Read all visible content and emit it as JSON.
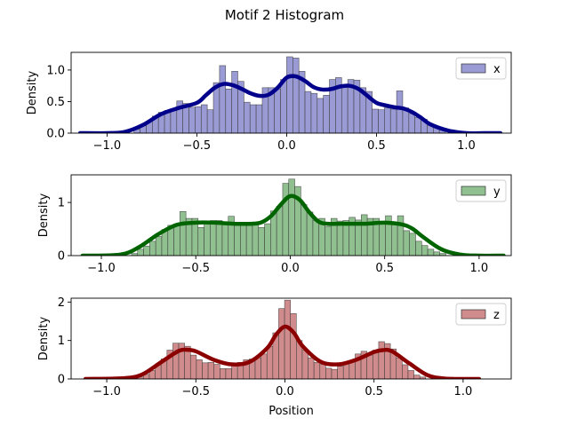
{
  "chart_data": {
    "title": "Motif 2 Histogram",
    "xlabel": "Position",
    "type": "bar",
    "panels": [
      {
        "name": "x",
        "ylabel": "Density",
        "xlim": [
          -1.2,
          1.25
        ],
        "ylim": [
          0,
          1.28
        ],
        "xticks": [
          -1.0,
          -0.5,
          0.0,
          0.5,
          1.0
        ],
        "xtick_labels": [
          "−1.0",
          "−0.5",
          "0.0",
          "0.5",
          "1.0"
        ],
        "yticks": [
          0.0,
          0.5,
          1.0
        ],
        "ytick_labels": [
          "0.0",
          "0.5",
          "1.0"
        ],
        "bar_color": "#9a9ad4",
        "line_color": "#00008b",
        "legend_position": "upper-right",
        "bins": {
          "start": -0.85,
          "width": 0.034,
          "values": [
            0.06,
            0.12,
            0.18,
            0.27,
            0.33,
            0.36,
            0.37,
            0.51,
            0.47,
            0.41,
            0.42,
            0.45,
            0.37,
            0.8,
            1.07,
            0.7,
            0.98,
            0.82,
            0.49,
            0.45,
            0.45,
            0.72,
            0.72,
            0.7,
            0.85,
            1.21,
            1.19,
            0.98,
            0.66,
            0.63,
            0.55,
            0.6,
            0.85,
            0.88,
            0.76,
            0.85,
            0.84,
            0.72,
            0.66,
            0.38,
            0.37,
            0.4,
            0.38,
            0.67,
            0.4,
            0.31,
            0.25,
            0.22,
            0.12,
            0.1,
            0.06
          ]
        },
        "kde": {
          "x": [
            -1.15,
            -1.0,
            -0.9,
            -0.8,
            -0.7,
            -0.6,
            -0.5,
            -0.45,
            -0.4,
            -0.35,
            -0.3,
            -0.25,
            -0.2,
            -0.15,
            -0.1,
            -0.05,
            0.0,
            0.05,
            0.1,
            0.15,
            0.2,
            0.25,
            0.3,
            0.35,
            0.4,
            0.45,
            0.5,
            0.55,
            0.6,
            0.65,
            0.7,
            0.75,
            0.8,
            0.9,
            1.0,
            1.1,
            1.19
          ],
          "y": [
            0.0,
            0.0,
            0.02,
            0.13,
            0.3,
            0.4,
            0.48,
            0.6,
            0.72,
            0.78,
            0.76,
            0.7,
            0.63,
            0.59,
            0.61,
            0.72,
            0.88,
            0.9,
            0.83,
            0.73,
            0.69,
            0.7,
            0.74,
            0.75,
            0.7,
            0.59,
            0.48,
            0.44,
            0.41,
            0.39,
            0.33,
            0.24,
            0.14,
            0.04,
            0.0,
            0.0,
            0.0
          ]
        }
      },
      {
        "name": "y",
        "ylabel": "Density",
        "xlim": [
          -1.16,
          1.17
        ],
        "ylim": [
          0,
          1.52
        ],
        "xticks": [
          -1.0,
          -0.5,
          0.0,
          0.5,
          1.0
        ],
        "xtick_labels": [
          "−1.0",
          "−0.5",
          "0.0",
          "0.5",
          "1.0"
        ],
        "yticks": [
          0.0,
          1.0
        ],
        "ytick_labels": [
          "0",
          "1"
        ],
        "bar_color": "#90bf90",
        "line_color": "#006400",
        "legend_position": "upper-right",
        "bins": {
          "start": -0.84,
          "width": 0.032,
          "values": [
            0.04,
            0.12,
            0.18,
            0.27,
            0.36,
            0.49,
            0.57,
            0.59,
            0.83,
            0.7,
            0.7,
            0.53,
            0.62,
            0.66,
            0.66,
            0.62,
            0.74,
            0.57,
            0.57,
            0.59,
            0.63,
            0.53,
            0.6,
            0.84,
            0.93,
            1.36,
            1.44,
            1.3,
            0.96,
            0.82,
            0.66,
            0.7,
            0.55,
            0.7,
            0.65,
            0.66,
            0.72,
            0.67,
            0.77,
            0.7,
            0.7,
            0.62,
            0.75,
            0.62,
            0.75,
            0.47,
            0.42,
            0.27,
            0.19,
            0.12,
            0.07,
            0.04
          ]
        },
        "kde": {
          "x": [
            -1.1,
            -0.9,
            -0.8,
            -0.7,
            -0.6,
            -0.5,
            -0.4,
            -0.3,
            -0.2,
            -0.15,
            -0.1,
            -0.05,
            0.0,
            0.05,
            0.1,
            0.15,
            0.2,
            0.3,
            0.4,
            0.5,
            0.6,
            0.65,
            0.7,
            0.8,
            0.9,
            1.0,
            1.13
          ],
          "y": [
            0.0,
            0.02,
            0.16,
            0.4,
            0.58,
            0.62,
            0.62,
            0.6,
            0.6,
            0.63,
            0.75,
            0.96,
            1.12,
            1.05,
            0.82,
            0.64,
            0.6,
            0.6,
            0.6,
            0.62,
            0.58,
            0.5,
            0.36,
            0.12,
            0.02,
            0.0,
            0.0
          ]
        }
      },
      {
        "name": "z",
        "ylabel": "Density",
        "xlim": [
          -1.2,
          1.27
        ],
        "ylim": [
          0,
          2.1
        ],
        "xticks": [
          -1.0,
          -0.5,
          0.0,
          0.5,
          1.0
        ],
        "xtick_labels": [
          "−1.0",
          "−0.5",
          "0.0",
          "0.5",
          "1.0"
        ],
        "yticks": [
          0,
          1,
          2
        ],
        "ytick_labels": [
          "0",
          "1",
          "2"
        ],
        "bar_color": "#d08c8c",
        "line_color": "#8b0000",
        "legend_position": "upper-right",
        "bins": {
          "start": -0.86,
          "width": 0.033,
          "values": [
            0.03,
            0.05,
            0.12,
            0.22,
            0.38,
            0.52,
            0.75,
            0.93,
            0.93,
            0.85,
            0.62,
            0.5,
            0.42,
            0.43,
            0.38,
            0.27,
            0.27,
            0.37,
            0.43,
            0.5,
            0.52,
            0.55,
            0.65,
            0.85,
            1.2,
            1.83,
            2.05,
            1.7,
            1.0,
            0.75,
            0.55,
            0.43,
            0.38,
            0.28,
            0.25,
            0.33,
            0.4,
            0.48,
            0.65,
            0.72,
            0.62,
            0.75,
            0.97,
            0.92,
            0.78,
            0.55,
            0.37,
            0.22,
            0.1,
            0.05
          ]
        },
        "kde": {
          "x": [
            -1.12,
            -0.9,
            -0.8,
            -0.7,
            -0.6,
            -0.55,
            -0.5,
            -0.4,
            -0.3,
            -0.2,
            -0.1,
            -0.05,
            0.0,
            0.05,
            0.1,
            0.2,
            0.3,
            0.4,
            0.5,
            0.55,
            0.6,
            0.7,
            0.8,
            0.9,
            1.09
          ],
          "y": [
            0.0,
            0.02,
            0.12,
            0.42,
            0.72,
            0.76,
            0.72,
            0.5,
            0.38,
            0.44,
            0.8,
            1.15,
            1.36,
            1.2,
            0.85,
            0.45,
            0.38,
            0.5,
            0.7,
            0.75,
            0.72,
            0.4,
            0.1,
            0.01,
            0.0
          ]
        }
      }
    ]
  }
}
